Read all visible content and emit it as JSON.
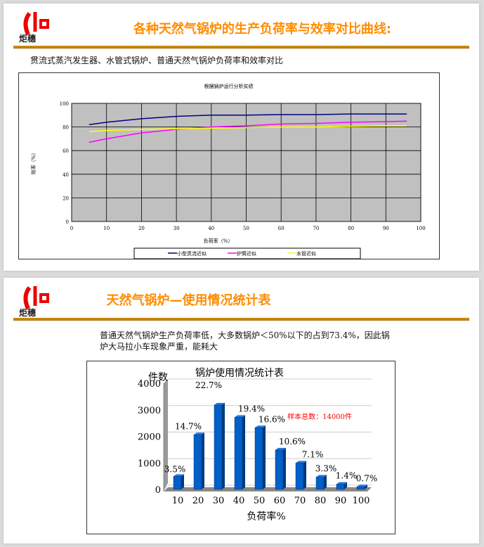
{
  "slide1": {
    "logo_text": "炬穗",
    "title": "各种天然气锅炉的生产负荷率与效率对比曲线:",
    "subtitle": "贯流式蒸汽发生器、水管式锅炉、普通天然气锅炉负荷率和效率对比"
  },
  "slide2": {
    "logo_text": "炬穗",
    "title": "天然气锅炉—使用情况统计表",
    "text": "普通天然气锅炉生产负荷率低，大多数锅炉＜50%以下的占到73.4%，因此锅炉大马拉小车现象严重，能耗大"
  },
  "chart_data": [
    {
      "type": "line",
      "title": "根据锅炉运行分析实绩",
      "xlabel": "负荷率（%）",
      "ylabel": "效率（%）",
      "xlim": [
        0,
        100
      ],
      "ylim": [
        0,
        100
      ],
      "xticks": [
        0,
        10,
        20,
        30,
        40,
        50,
        60,
        70,
        80,
        90,
        100
      ],
      "yticks": [
        0,
        20,
        40,
        60,
        80,
        100
      ],
      "grid": true,
      "legend": "bottom",
      "background": "#c0c0c0",
      "x": [
        5,
        10,
        20,
        30,
        40,
        50,
        60,
        70,
        80,
        90,
        96
      ],
      "series": [
        {
          "name": "小型贯流近似",
          "color": "#000080",
          "values": [
            82,
            84,
            87,
            89,
            90,
            90,
            90.5,
            90.5,
            91,
            91,
            91
          ]
        },
        {
          "name": "炉筒近似",
          "color": "#ff00ff",
          "values": [
            67,
            70,
            75,
            78,
            80,
            81,
            82.5,
            83,
            84,
            84.5,
            85
          ]
        },
        {
          "name": "水管近似",
          "color": "#ffff00",
          "values": [
            76,
            77,
            78,
            78.5,
            79,
            79.5,
            80,
            80,
            80.5,
            81,
            81
          ]
        }
      ]
    },
    {
      "type": "bar",
      "title": "锅炉使用情况统计表",
      "ylabel": "件数",
      "xlabel": "负荷率%",
      "ylim": [
        0,
        4000
      ],
      "yticks": [
        0,
        1000,
        2000,
        3000,
        4000
      ],
      "categories": [
        "10",
        "20",
        "30",
        "40",
        "50",
        "60",
        "70",
        "80",
        "90",
        "100"
      ],
      "values": [
        490,
        2058,
        3178,
        2716,
        2324,
        1484,
        994,
        462,
        196,
        98
      ],
      "labels": [
        "3.5%",
        "14.7%",
        "22.7%",
        "19.4%",
        "16.6%",
        "10.6%",
        "7.1%",
        "3.3%",
        "1.4%",
        "0.7%"
      ],
      "annotation": "样本总数：14000件",
      "annotation_color": "#ff0000",
      "bar_color": "#0060c8",
      "grid": true
    }
  ]
}
